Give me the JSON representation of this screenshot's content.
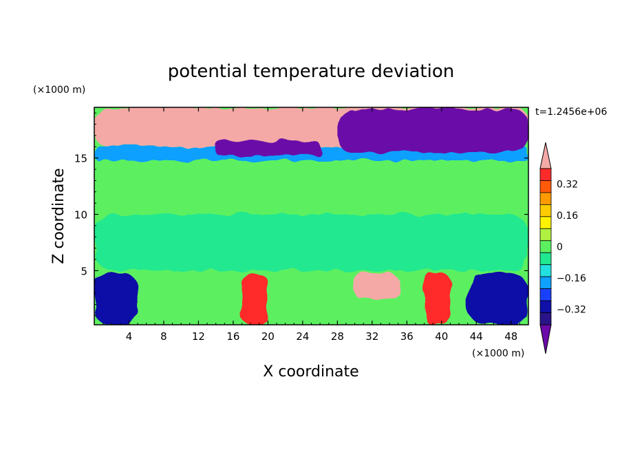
{
  "chart_data": {
    "type": "heatmap",
    "title": "potential temperature deviation",
    "xlabel": "X coordinate",
    "ylabel": "Z coordinate",
    "x_unit": "(×1000 m)",
    "y_unit": "(×1000 m)",
    "time_label": "t=1.2456e+06",
    "xlim": [
      0,
      50
    ],
    "ylim": [
      0.2,
      19.5
    ],
    "x_ticks": [
      4,
      8,
      12,
      16,
      20,
      24,
      28,
      32,
      36,
      40,
      44,
      48
    ],
    "y_ticks": [
      5,
      10,
      15
    ],
    "colorbar": {
      "levels": [
        -0.4,
        -0.32,
        -0.24,
        -0.16,
        -0.08,
        0,
        0.08,
        0.16,
        0.24,
        0.32,
        0.4
      ],
      "tick_labels": [
        "0.32",
        "0.16",
        "0",
        "−0.16",
        "−0.32"
      ],
      "tick_values": [
        0.32,
        0.16,
        0,
        -0.16,
        -0.32
      ],
      "colors": [
        "#ff2a2a",
        "#ff5a0a",
        "#ff9b00",
        "#ffcc00",
        "#fff200",
        "#b0f040",
        "#5cf060",
        "#20e890",
        "#22e0e0",
        "#10a0ff",
        "#1a40ff",
        "#1010a8",
        "#2a1488"
      ],
      "over_color": "#f4a9a6",
      "under_color": "#6a0aa8"
    },
    "regions": [
      {
        "x0": 0,
        "x1": 50,
        "z0": 10,
        "z1": 14.8,
        "value": 0.02
      },
      {
        "x0": 0,
        "x1": 50,
        "z0": 5,
        "z1": 10,
        "value": -0.06
      },
      {
        "x0": 0,
        "x1": 50,
        "z0": 14.8,
        "z1": 16,
        "value": -0.2
      },
      {
        "x0": 0,
        "x1": 50,
        "z0": 16,
        "z1": 19.5,
        "value": 0.45
      },
      {
        "x0": 28,
        "x1": 50,
        "z0": 15.5,
        "z1": 19.3,
        "value": -0.45
      },
      {
        "x0": 14,
        "x1": 26,
        "z0": 15.2,
        "z1": 16.5,
        "value": -0.45
      },
      {
        "x0": 0,
        "x1": 5,
        "z0": 0.2,
        "z1": 4.8,
        "value": -0.3
      },
      {
        "x0": 17,
        "x1": 20,
        "z0": 0.2,
        "z1": 4.7,
        "value": 0.36
      },
      {
        "x0": 30,
        "x1": 35,
        "z0": 2.4,
        "z1": 4.8,
        "value": 0.45
      },
      {
        "x0": 43,
        "x1": 50,
        "z0": 0.2,
        "z1": 4.8,
        "value": -0.3
      },
      {
        "x0": 38,
        "x1": 41,
        "z0": 0.2,
        "z1": 4.8,
        "value": 0.36
      }
    ]
  }
}
